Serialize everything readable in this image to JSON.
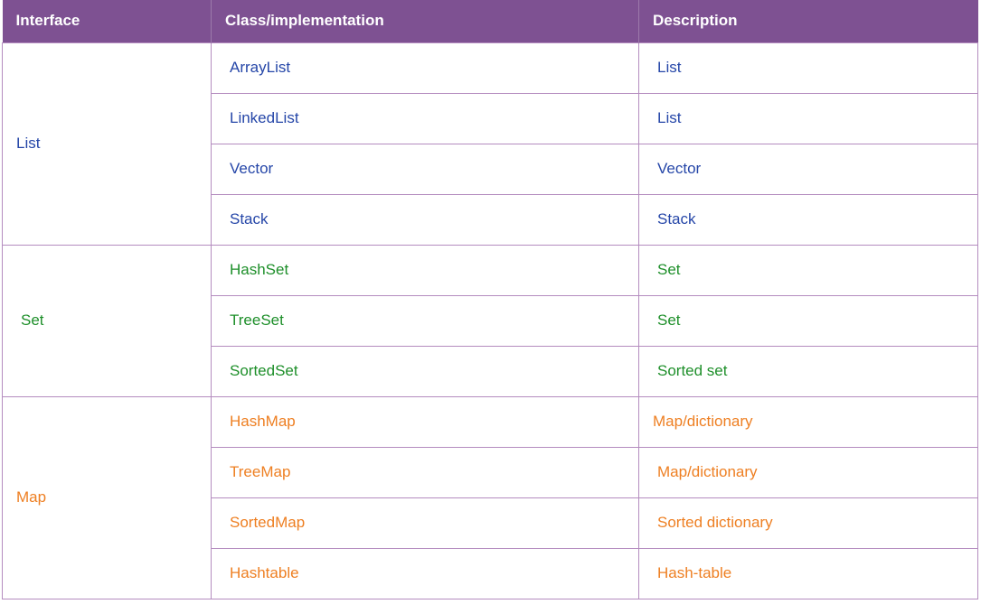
{
  "headers": [
    "Interface",
    "Class/implementation",
    "Description"
  ],
  "colors": {
    "list": "#2546a8",
    "set": "#1e8f2a",
    "map": "#ee7f22",
    "header_bg": "#7e5192"
  },
  "groups": [
    {
      "interface": "List",
      "rows": [
        {
          "impl": "ArrayList",
          "desc": "List"
        },
        {
          "impl": "LinkedList",
          "desc": "List"
        },
        {
          "impl": "Vector",
          "desc": "Vector"
        },
        {
          "impl": "Stack",
          "desc": "Stack"
        }
      ]
    },
    {
      "interface": "Set",
      "rows": [
        {
          "impl": "HashSet",
          "desc": "Set"
        },
        {
          "impl": "TreeSet",
          "desc": "Set"
        },
        {
          "impl": "SortedSet",
          "desc": "Sorted set"
        }
      ]
    },
    {
      "interface": "Map",
      "rows": [
        {
          "impl": "HashMap",
          "desc": "Map/dictionary"
        },
        {
          "impl": "TreeMap",
          "desc": "Map/dictionary"
        },
        {
          "impl": "SortedMap",
          "desc": "Sorted dictionary"
        },
        {
          "impl": "Hashtable",
          "desc": "Hash-table"
        }
      ]
    }
  ]
}
